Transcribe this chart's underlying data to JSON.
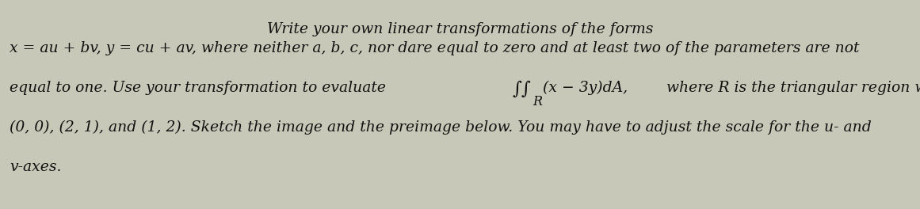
{
  "bg_color": "#c8c8b8",
  "figsize": [
    11.61,
    2.64
  ],
  "dpi": 100,
  "font_size": 13.5,
  "text_color": "#111111",
  "line1": "Write your own linear transformations of the forms",
  "line2a": "x = au + bv, y = cu + av,",
  "line2b": " where neither ",
  "line2c": "a, b, c,",
  "line2d": " nor d",
  "line2e": "are equal to zero and at least two of the parameters are not",
  "line3a": "equal to one. Use your transformation to evaluate ∫∫(x − 3y)dA,  where R is the triangular region with vertices",
  "line3_R": "R",
  "line4": "(0, 0), (2, 1), and (1, 2). Sketch the image and the preimage below. You may have to adjust the scale for the u- and",
  "line5": "v-axes."
}
